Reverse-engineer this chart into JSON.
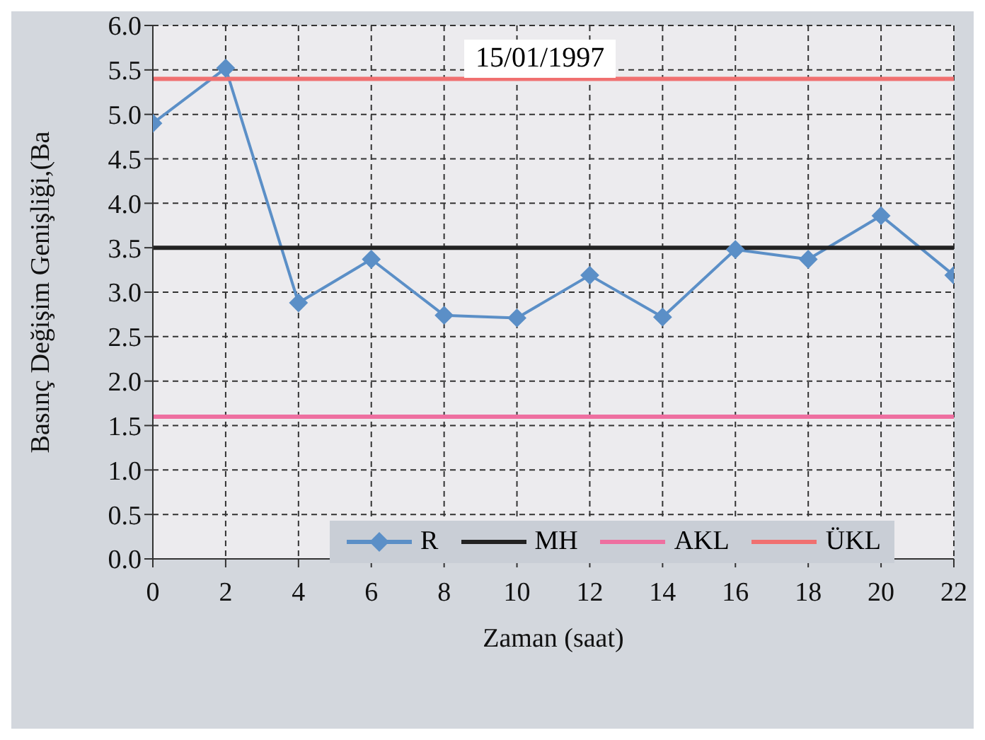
{
  "chart_data": {
    "type": "line",
    "title": "15/01/1997",
    "xlabel": "Zaman (saat)",
    "ylabel": "Basınç Değişim Genişliği,(Ba",
    "x": [
      0,
      2,
      4,
      6,
      8,
      10,
      12,
      14,
      16,
      18,
      20,
      22
    ],
    "series": [
      {
        "name": "R",
        "color": "#5b8fc7",
        "marker": "diamond",
        "values": [
          4.9,
          5.52,
          2.88,
          3.37,
          2.74,
          2.71,
          3.19,
          2.72,
          3.48,
          3.37,
          3.86,
          3.19
        ]
      },
      {
        "name": "MH",
        "color": "#222222",
        "marker": "none",
        "values": [
          3.5,
          3.5,
          3.5,
          3.5,
          3.5,
          3.5,
          3.5,
          3.5,
          3.5,
          3.5,
          3.5,
          3.5
        ]
      },
      {
        "name": "AKL",
        "color": "#ee6fa0",
        "marker": "none",
        "values": [
          1.6,
          1.6,
          1.6,
          1.6,
          1.6,
          1.6,
          1.6,
          1.6,
          1.6,
          1.6,
          1.6,
          1.6
        ]
      },
      {
        "name": "ÜKL",
        "color": "#f07070",
        "marker": "none",
        "values": [
          5.4,
          5.4,
          5.4,
          5.4,
          5.4,
          5.4,
          5.4,
          5.4,
          5.4,
          5.4,
          5.4,
          5.4
        ]
      }
    ],
    "xlim": [
      0,
      22
    ],
    "xticks": [
      0,
      2,
      4,
      6,
      8,
      10,
      12,
      14,
      16,
      18,
      20,
      22
    ],
    "ylim": [
      0,
      6
    ],
    "yticks": [
      {
        "value": 0,
        "label": "0.0"
      },
      {
        "value": 0.5,
        "label": "0.5"
      },
      {
        "value": 1,
        "label": "1.0"
      },
      {
        "value": 1.5,
        "label": "1.5"
      },
      {
        "value": 2,
        "label": "2.0"
      },
      {
        "value": 2.5,
        "label": "2.5"
      },
      {
        "value": 3,
        "label": "3.0"
      },
      {
        "value": 3.5,
        "label": "3.5"
      },
      {
        "value": 4,
        "label": "4.0"
      },
      {
        "value": 4.5,
        "label": "4.5"
      },
      {
        "value": 5,
        "label": "5.0"
      },
      {
        "value": 5.5,
        "label": "5.5"
      },
      {
        "value": 6,
        "label": "6.0"
      }
    ],
    "grid": true,
    "legend": "bottom",
    "line_style": "solid"
  }
}
